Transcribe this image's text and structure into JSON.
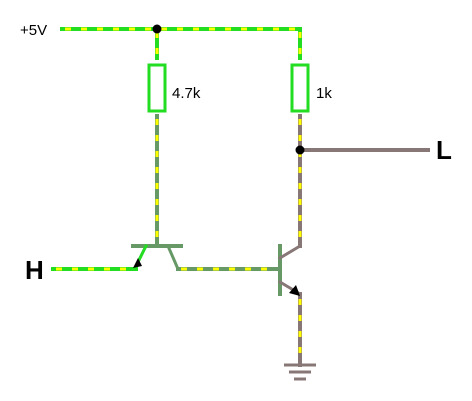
{
  "labels": {
    "supply": "+5V",
    "input": "H",
    "output": "L",
    "r_base": "4.7k",
    "r_collector": "1k"
  },
  "colors": {
    "live_wire": "#22dd22",
    "current_dots": "#ffff00",
    "low_wire": "#887777",
    "transistor_body": "#669966",
    "resistor_fill": "#ffffff",
    "node_dot": "#000000",
    "arrow": "#000000"
  },
  "icons": {
    "ground": "ground-symbol-icon",
    "npn_left": "npn-transistor-icon",
    "npn_right": "npn-transistor-icon"
  }
}
